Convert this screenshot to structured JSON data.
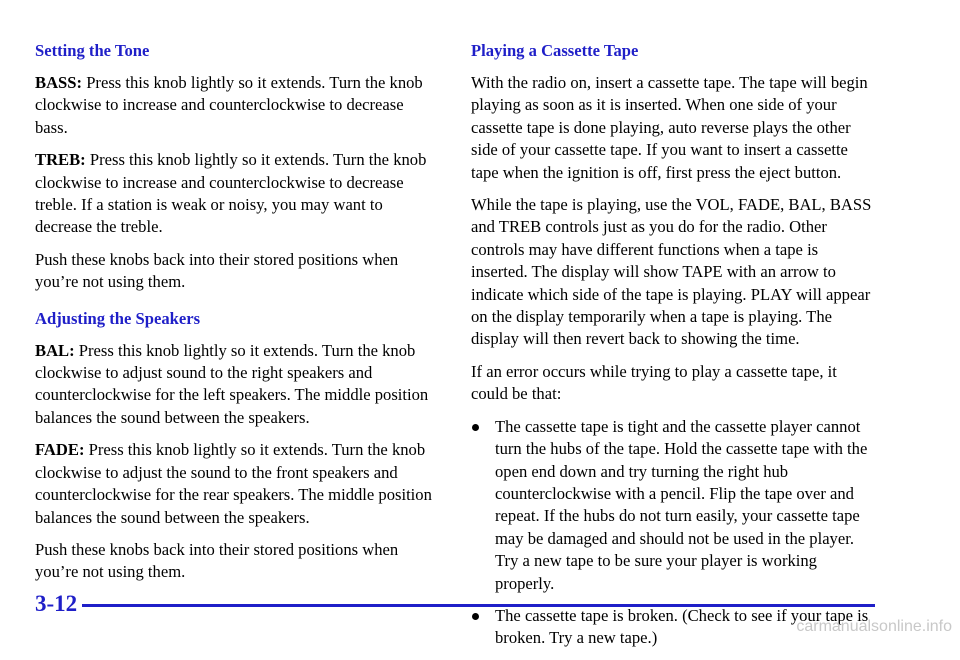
{
  "left": {
    "sections": [
      {
        "heading": "Setting the Tone",
        "paragraphs": [
          {
            "lead": "BASS:",
            "text": " Press this knob lightly so it extends. Turn the knob clockwise to increase and counterclockwise to decrease bass."
          },
          {
            "lead": "TREB:",
            "text": " Press this knob lightly so it extends. Turn the knob clockwise to increase and counterclockwise to decrease treble. If a station is weak or noisy, you may want to decrease the treble."
          },
          {
            "text": "Push these knobs back into their stored positions when you’re not using them."
          }
        ]
      },
      {
        "heading": "Adjusting the Speakers",
        "paragraphs": [
          {
            "lead": "BAL:",
            "text": " Press this knob lightly so it extends. Turn the knob clockwise to adjust sound to the right speakers and counterclockwise for the left speakers. The middle position balances the sound between the speakers."
          },
          {
            "lead": "FADE:",
            "text": " Press this knob lightly so it extends. Turn the knob clockwise to adjust the sound to the front speakers and counterclockwise for the rear speakers. The middle position balances the sound between the speakers."
          },
          {
            "text": "Push these knobs back into their stored positions when you’re not using them."
          }
        ]
      }
    ]
  },
  "right": {
    "heading": "Playing a Cassette Tape",
    "paragraphs": [
      "With the radio on, insert a cassette tape. The tape will begin playing as soon as it is inserted. When one side of your cassette tape is done playing, auto reverse plays the other side of your cassette tape. If you want to insert a cassette tape when the ignition is off, first press the eject button.",
      "While the tape is playing, use the VOL, FADE, BAL, BASS and TREB controls just as you do for the radio. Other controls may have different functions when a tape is inserted. The display will show TAPE with an arrow to indicate which side of the tape is playing. PLAY will appear on the display temporarily when a tape is playing. The display will then revert back to showing the time.",
      "If an error occurs while trying to play a cassette tape, it could be that:"
    ],
    "bullets": [
      "The cassette tape is tight and the cassette player cannot turn the hubs of the tape. Hold the cassette tape with the open end down and try turning the right hub counterclockwise with a pencil. Flip the tape over and repeat. If the hubs do not turn easily, your cassette tape may be damaged and should not be used in the player. Try a new tape to be sure your player is working properly.",
      "The cassette tape is broken. (Check to see if your tape is broken. Try a new tape.)"
    ]
  },
  "footer": {
    "page_number": "3-12",
    "watermark": "carmanualsonline.info"
  }
}
